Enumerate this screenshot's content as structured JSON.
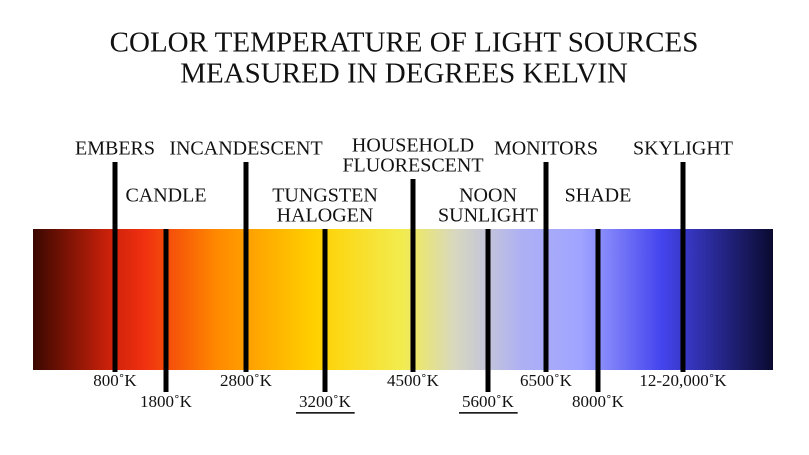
{
  "header": {
    "title": [
      "COLOR TEMPERATURE OF LIGHT SOURCES",
      "MEASURED IN DEGREES KELVIN"
    ]
  },
  "markers": [
    {
      "label": [
        "EMBERS"
      ],
      "temperature": "800˚K"
    },
    {
      "label": [
        "CANDLE"
      ],
      "temperature": "1800˚K"
    },
    {
      "label": [
        "INCANDESCENT"
      ],
      "temperature": "2800˚K"
    },
    {
      "label": [
        "TUNGSTEN",
        "HALOGEN"
      ],
      "temperature": "3200˚K",
      "underlined": true
    },
    {
      "label": [
        "HOUSEHOLD",
        "FLUORESCENT"
      ],
      "temperature": "4500˚K"
    },
    {
      "label": [
        "NOON",
        "SUNLIGHT"
      ],
      "temperature": "5600˚K",
      "underlined": true
    },
    {
      "label": [
        "MONITORS"
      ],
      "temperature": "6500˚K"
    },
    {
      "label": [
        "SHADE"
      ],
      "temperature": "8000˚K"
    },
    {
      "label": [
        "SKYLIGHT"
      ],
      "temperature": "12-20,000˚K"
    }
  ]
}
